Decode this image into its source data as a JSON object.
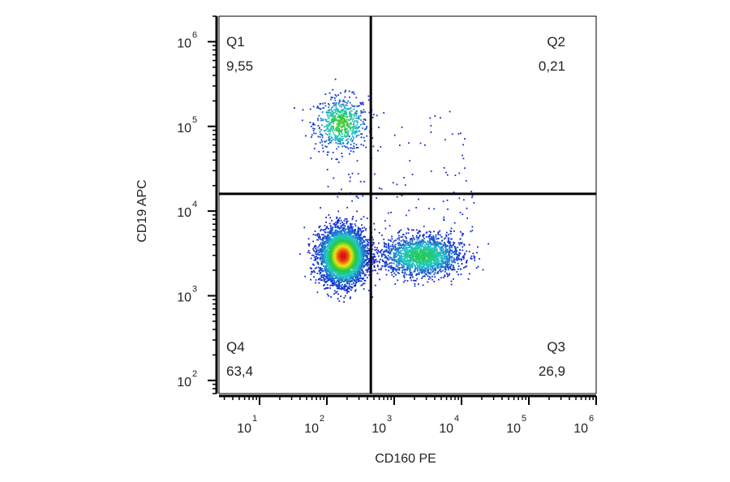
{
  "chart_data": {
    "type": "scatter",
    "xlabel": "CD160 PE",
    "ylabel": "CD19 APC",
    "x_scale": "log",
    "y_scale": "log",
    "xlim": [
      2.5,
      1000000
    ],
    "ylim": [
      70,
      2000000
    ],
    "x_ticks": [
      {
        "base": "10",
        "exp": "1",
        "value": 10
      },
      {
        "base": "10",
        "exp": "2",
        "value": 100
      },
      {
        "base": "10",
        "exp": "3",
        "value": 1000
      },
      {
        "base": "10",
        "exp": "4",
        "value": 10000
      },
      {
        "base": "10",
        "exp": "5",
        "value": 100000
      },
      {
        "base": "10",
        "exp": "6",
        "value": 1000000
      }
    ],
    "y_ticks": [
      {
        "base": "10",
        "exp": "2",
        "value": 100
      },
      {
        "base": "10",
        "exp": "3",
        "value": 1000
      },
      {
        "base": "10",
        "exp": "4",
        "value": 10000
      },
      {
        "base": "10",
        "exp": "5",
        "value": 100000
      },
      {
        "base": "10",
        "exp": "6",
        "value": 1000000
      }
    ],
    "gate": {
      "x": 450,
      "y": 16000
    },
    "quadrants": [
      {
        "name": "Q1",
        "value": "9,55"
      },
      {
        "name": "Q2",
        "value": "0,21"
      },
      {
        "name": "Q3",
        "value": "26,9"
      },
      {
        "name": "Q4",
        "value": "63,4"
      }
    ],
    "populations": [
      {
        "center": [
          160,
          110000
        ],
        "count": 9.55
      },
      {
        "center": [
          170,
          3000
        ],
        "count": 63.4
      },
      {
        "center": [
          2500,
          3000
        ],
        "count": 26.9
      }
    ],
    "colors": {
      "density_low": "#1020d0",
      "density_mid": "#20c8c0",
      "density_high": "#e01010",
      "gate_lines": "#000000",
      "axis": "#000000"
    }
  }
}
